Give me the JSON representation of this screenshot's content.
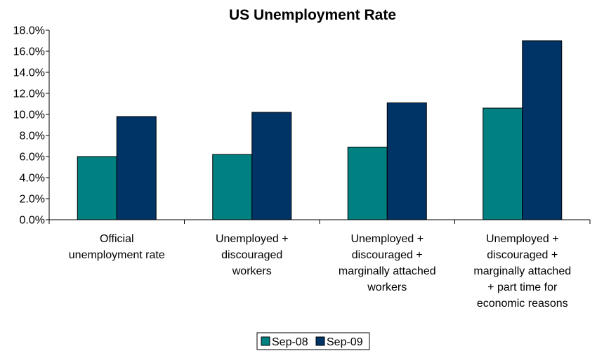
{
  "chart_data": {
    "type": "bar",
    "title": "US Unemployment Rate",
    "xlabel": "",
    "ylabel": "",
    "categories": [
      [
        "Official",
        "unemployment rate"
      ],
      [
        "Unemployed +",
        "discouraged",
        "workers"
      ],
      [
        "Unemployed +",
        "discouraged +",
        "marginally attached",
        "workers"
      ],
      [
        "Unemployed +",
        "discouraged +",
        "marginally attached",
        "+ part time for",
        "economic reasons"
      ]
    ],
    "series": [
      {
        "name": "Sep-08",
        "color": "#008080",
        "values": [
          6.0,
          6.2,
          6.9,
          10.6
        ]
      },
      {
        "name": "Sep-09",
        "color": "#003366",
        "values": [
          9.8,
          10.2,
          11.1,
          17.0
        ]
      }
    ],
    "ylim": [
      0,
      18
    ],
    "yticks": [
      "0.0%",
      "2.0%",
      "4.0%",
      "6.0%",
      "8.0%",
      "10.0%",
      "12.0%",
      "14.0%",
      "16.0%",
      "18.0%"
    ],
    "grid": false,
    "legend": "bottom"
  }
}
